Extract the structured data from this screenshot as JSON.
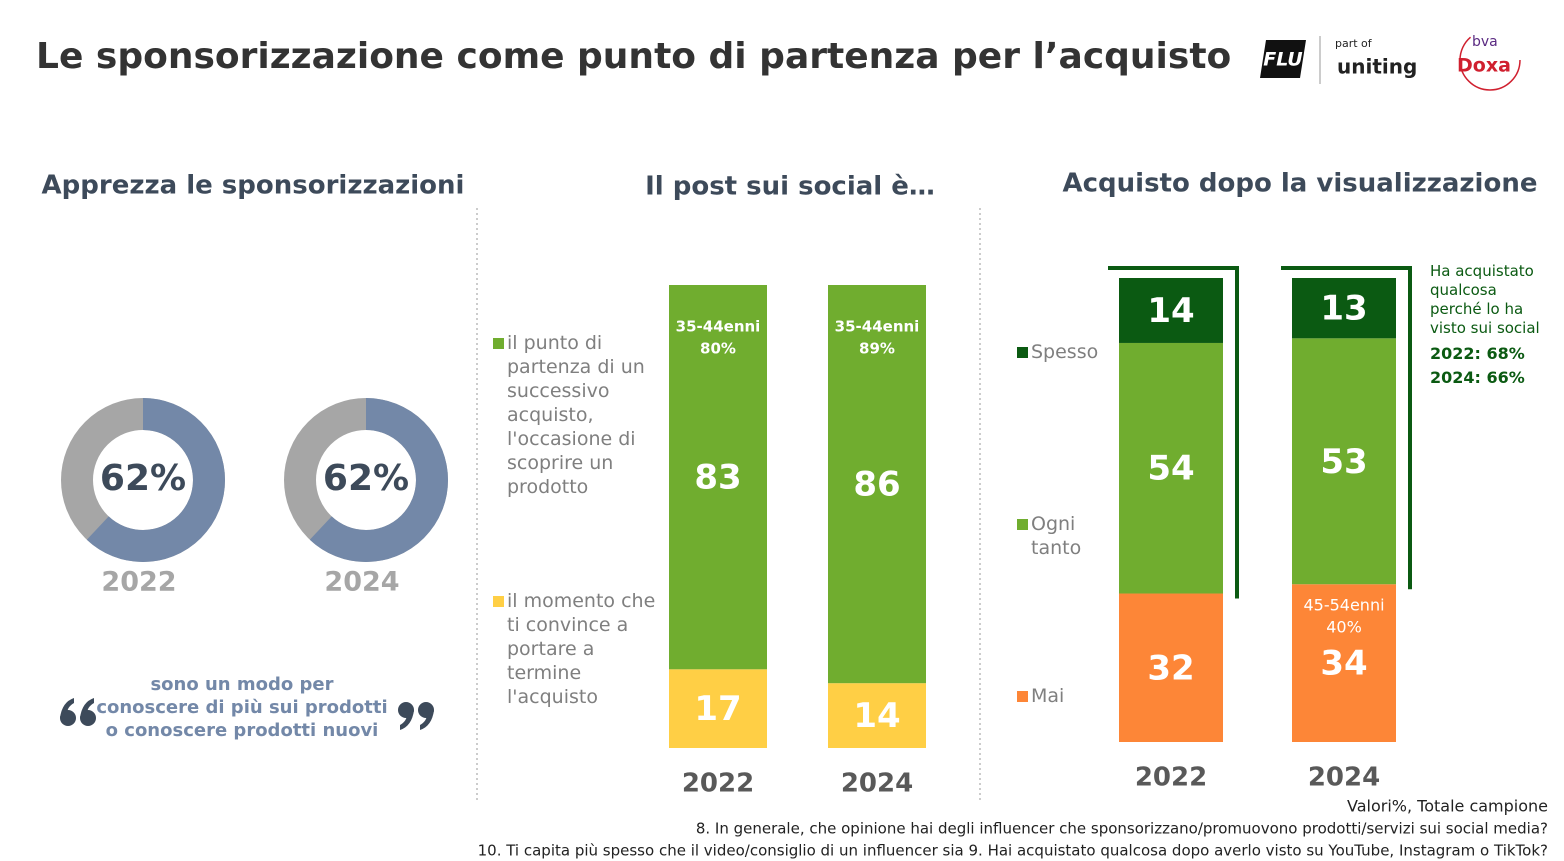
{
  "title": "Le sponsorizzazione come punto di partenza per l’acquisto",
  "logos": {
    "flu": "FLU",
    "part_of": "part of",
    "uniting": "uniting",
    "bva": "bva",
    "doxa": "Doxa"
  },
  "chart_data": [
    {
      "type": "donut",
      "title": "Apprezza le sponsorizzazioni",
      "categories": [
        "2022",
        "2024"
      ],
      "values": [
        62,
        62
      ],
      "value_labels": [
        "62%",
        "62%"
      ],
      "color": "#7388a8",
      "rest_color": "#a6a6a6",
      "ylim": [
        0,
        100
      ],
      "caption": [
        "sono un modo per",
        "conoscere di più sui prodotti",
        "o conoscere prodotti nuovi"
      ]
    },
    {
      "type": "stacked_bar",
      "title": "Il post sui social è…",
      "categories": [
        "2022",
        "2024"
      ],
      "ylim": [
        0,
        100
      ],
      "series": [
        {
          "name": "il punto di partenza di un successivo acquisto, l'occasione di scoprire un prodotto",
          "color": "#70ad2f",
          "values": [
            83,
            86
          ]
        },
        {
          "name": "il momento che ti convince a portare a termine l'acquisto",
          "color": "#ffcf45",
          "values": [
            17,
            14
          ]
        }
      ],
      "annotations": [
        {
          "category": "2022",
          "lines": [
            "35-44enni",
            "80%"
          ]
        },
        {
          "category": "2024",
          "lines": [
            "35-44enni",
            "89%"
          ]
        }
      ]
    },
    {
      "type": "stacked_bar",
      "title": "Acquisto dopo la visualizzazione",
      "categories": [
        "2022",
        "2024"
      ],
      "ylim": [
        0,
        100
      ],
      "series": [
        {
          "name": "Spesso",
          "color": "#0b5a12",
          "values": [
            14,
            13
          ]
        },
        {
          "name": "Ogni tanto",
          "color": "#70ad2f",
          "values": [
            54,
            53
          ]
        },
        {
          "name": "Mai",
          "color": "#fd8637",
          "values": [
            32,
            34
          ]
        }
      ],
      "annotations": [
        {
          "category": "2024",
          "lines": [
            "45-54enni",
            "40%"
          ]
        }
      ],
      "note": {
        "text": "Ha acquistato qualcosa perché lo ha visto sui social",
        "items": [
          "2022: 68%",
          "2024: 66%"
        ]
      }
    }
  ],
  "footnotes": [
    "Valori%, Totale campione",
    "8. In generale, che opinione hai degli influencer che sponsorizzano/promuovono prodotti/servizi sui social media?",
    "10. Ti capita più spesso che il video/consiglio di un influencer sia 9. Hai acquistato qualcosa dopo averlo visto su YouTube, Instagram o TikTok?"
  ]
}
